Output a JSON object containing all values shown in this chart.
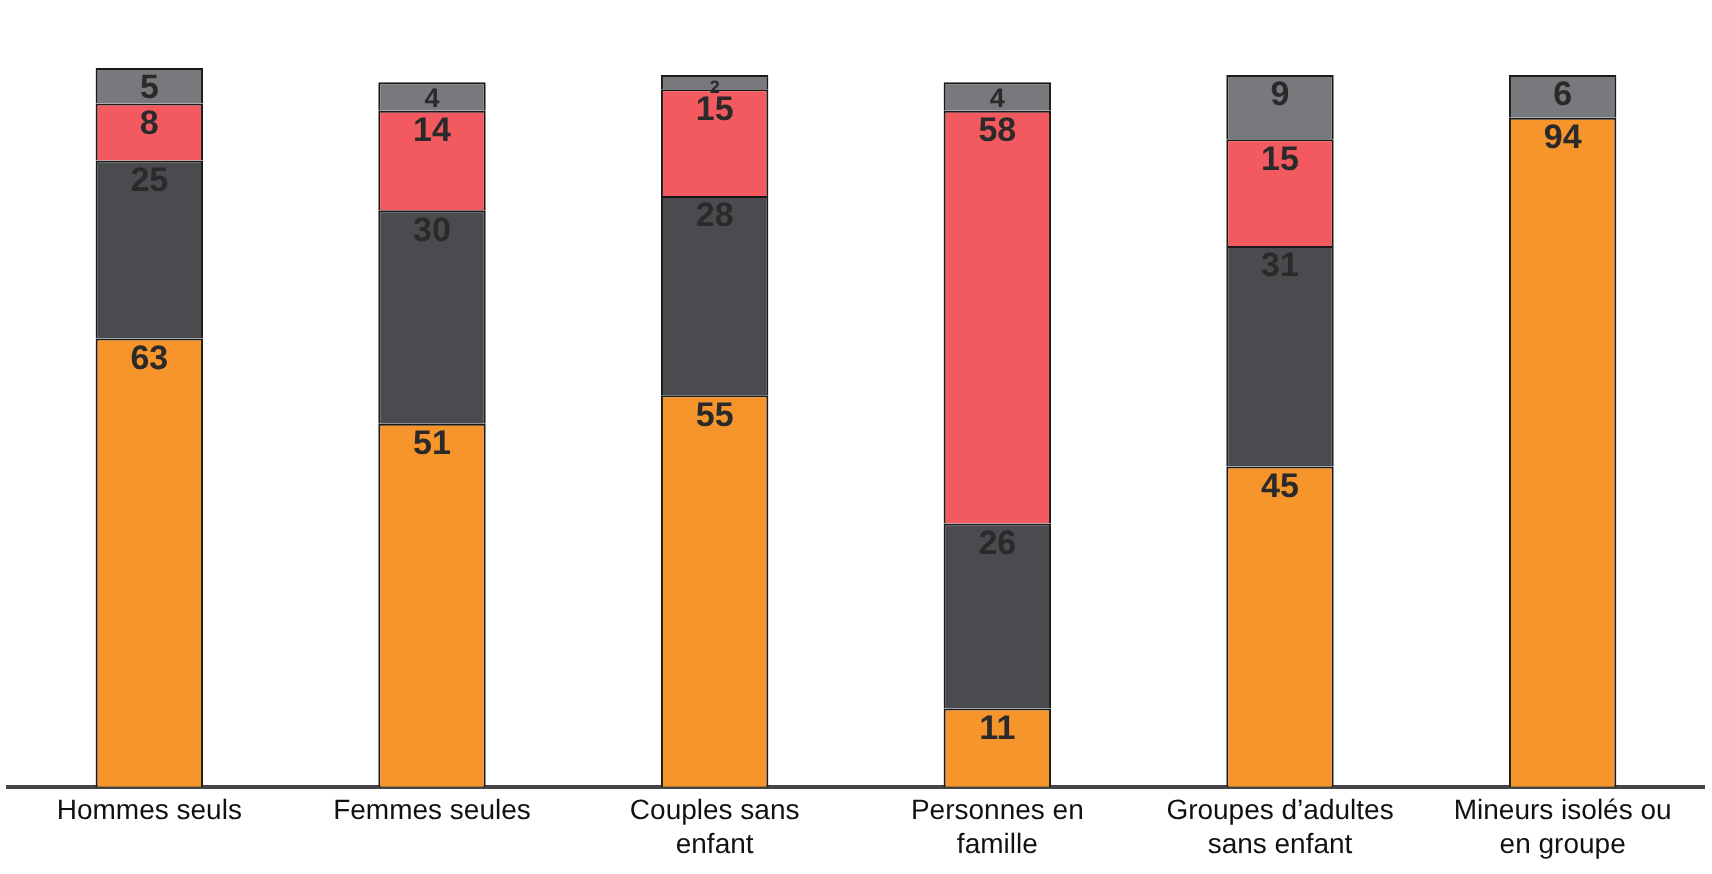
{
  "chart_data": {
    "type": "bar",
    "stacked": true,
    "data_labels": true,
    "legend": false,
    "grid": false,
    "categories": [
      "Hommes seuls",
      "Femmes seules",
      "Couples sans enfant",
      "Personnes en famille",
      "Groupes d’adultes sans enfant",
      "Mineurs isolés ou en groupe"
    ],
    "series": [
      {
        "color": "#f7952d",
        "values": [
          63,
          51,
          55,
          11,
          45,
          94
        ]
      },
      {
        "color": "#4a4b4f",
        "values": [
          25,
          30,
          28,
          26,
          31,
          null
        ]
      },
      {
        "color": "#f25a60",
        "values": [
          8,
          14,
          15,
          58,
          15,
          null
        ]
      },
      {
        "color": "#78797c",
        "values": [
          5,
          4,
          2,
          4,
          9,
          6
        ]
      }
    ]
  }
}
